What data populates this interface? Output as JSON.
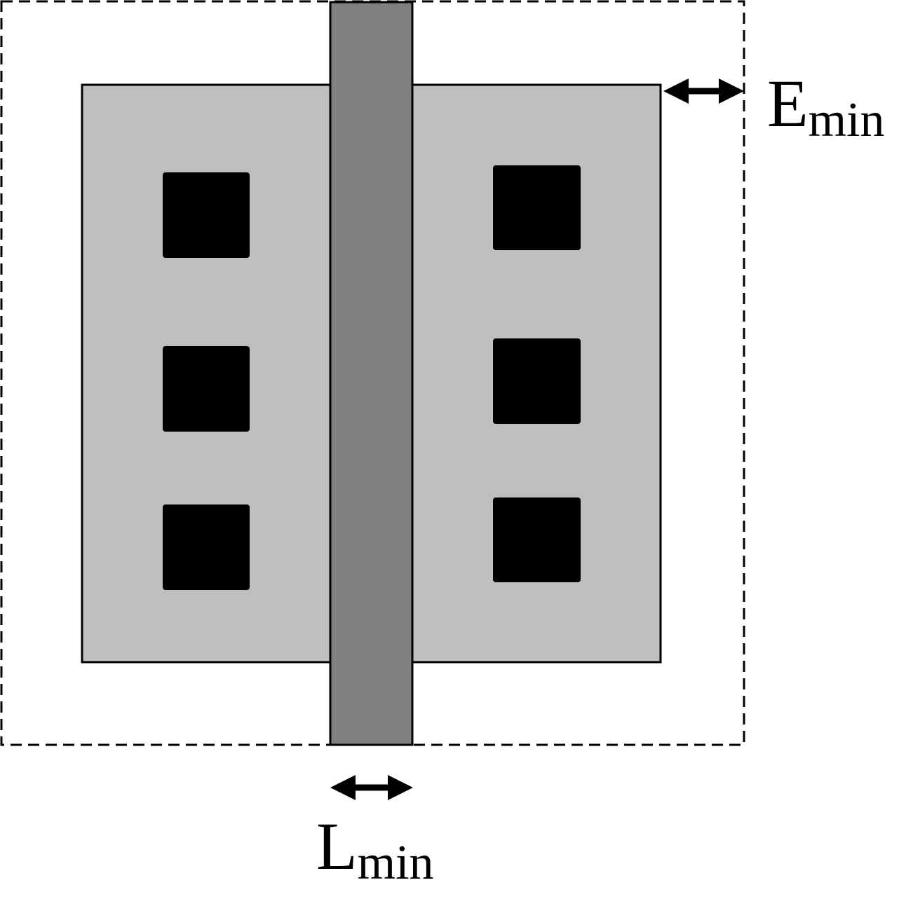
{
  "colors": {
    "background": "#ffffff",
    "diffusion_fill": "#bfbfbf",
    "gate_fill": "#808080",
    "contact_fill": "#000000",
    "outline": "#000000"
  },
  "labels": {
    "emin_main": "E",
    "emin_sub": "min",
    "lmin_main": "L",
    "lmin_sub": "min"
  }
}
